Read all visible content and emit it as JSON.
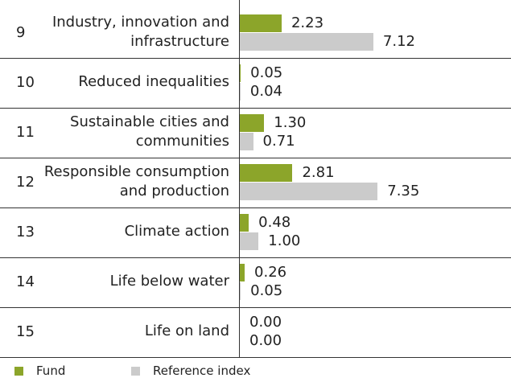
{
  "chart_data": {
    "type": "bar",
    "orientation": "horizontal",
    "row_numbers": [
      9,
      10,
      11,
      12,
      13,
      14,
      15
    ],
    "categories": [
      "Industry, innovation and infrastructure",
      "Reduced inequalities",
      "Sustainable cities and communities",
      "Responsible consumption and production",
      "Climate action",
      "Life below water",
      "Life on land"
    ],
    "series": [
      {
        "name": "Fund",
        "color": "#8ca52a",
        "values": [
          2.23,
          0.05,
          1.3,
          2.81,
          0.48,
          0.26,
          0
        ],
        "value_labels": [
          "2.23",
          "0.05",
          "1.30",
          "2.81",
          "0.48",
          "0.26",
          "0.00"
        ]
      },
      {
        "name": "Reference index",
        "color": "#cbcbcb",
        "values": [
          7.12,
          0.04,
          0.71,
          7.35,
          1,
          0.05,
          0
        ],
        "value_labels": [
          "7.12",
          "0.04",
          "0.71",
          "7.35",
          "1.00",
          "0.05",
          "0.00"
        ]
      }
    ]
  }
}
